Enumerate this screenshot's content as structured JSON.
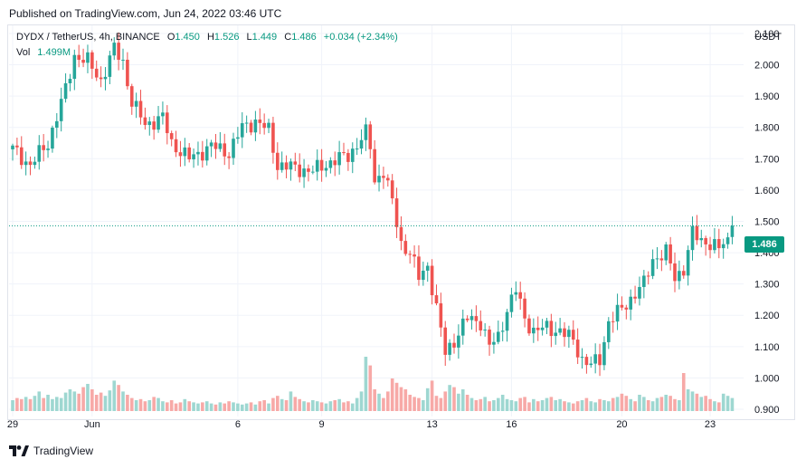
{
  "header": {
    "published": "Published on TradingView.com, Jun 24, 2022 03:46 UTC"
  },
  "legend": {
    "symbol": "DYDX / TetherUS, 4h, BINANCE",
    "open_label": "O",
    "open": "1.450",
    "high_label": "H",
    "high": "1.526",
    "low_label": "L",
    "low": "1.449",
    "close_label": "C",
    "close": "1.486",
    "change": "+0.034 (+2.34%)",
    "volume_label": "Vol",
    "volume": "1.499M"
  },
  "price_axis": {
    "currency": "USDT"
  },
  "last_price_label": "1.486",
  "footer": {
    "brand": "TradingView"
  },
  "colors": {
    "up": "#26a69a",
    "down": "#ef5350",
    "vol_up": "#9ed7d1",
    "vol_down": "#f7a9a7",
    "tag": "#089981",
    "grid": "#f0f3fa"
  },
  "chart_data": {
    "type": "candlestick",
    "ylim": [
      0.9,
      2.16
    ],
    "y_ticks": [
      "2.100",
      "2.000",
      "1.900",
      "1.800",
      "1.700",
      "1.600",
      "1.500",
      "1.400",
      "1.300",
      "1.200",
      "1.100",
      "1.000",
      "0.900"
    ],
    "x_ticks": [
      "29",
      "Jun",
      "6",
      "9",
      "13",
      "16",
      "20",
      "23"
    ],
    "last_price": 1.486,
    "waypoints": [
      {
        "i": 0,
        "p": 1.73
      },
      {
        "i": 4,
        "p": 1.68
      },
      {
        "i": 8,
        "p": 1.75
      },
      {
        "i": 12,
        "p": 1.92
      },
      {
        "i": 14,
        "p": 2.03
      },
      {
        "i": 17,
        "p": 2.01
      },
      {
        "i": 20,
        "p": 1.95
      },
      {
        "i": 23,
        "p": 2.05
      },
      {
        "i": 25,
        "p": 2.01
      },
      {
        "i": 27,
        "p": 1.88
      },
      {
        "i": 30,
        "p": 1.81
      },
      {
        "i": 34,
        "p": 1.83
      },
      {
        "i": 36,
        "p": 1.75
      },
      {
        "i": 40,
        "p": 1.7
      },
      {
        "i": 45,
        "p": 1.74
      },
      {
        "i": 49,
        "p": 1.72
      },
      {
        "i": 52,
        "p": 1.8
      },
      {
        "i": 55,
        "p": 1.82
      },
      {
        "i": 58,
        "p": 1.79
      },
      {
        "i": 60,
        "p": 1.68
      },
      {
        "i": 64,
        "p": 1.67
      },
      {
        "i": 68,
        "p": 1.66
      },
      {
        "i": 72,
        "p": 1.69
      },
      {
        "i": 76,
        "p": 1.71
      },
      {
        "i": 80,
        "p": 1.78
      },
      {
        "i": 81,
        "p": 1.74
      },
      {
        "i": 82,
        "p": 1.63
      },
      {
        "i": 84,
        "p": 1.66
      },
      {
        "i": 86,
        "p": 1.56
      },
      {
        "i": 88,
        "p": 1.43
      },
      {
        "i": 90,
        "p": 1.4
      },
      {
        "i": 92,
        "p": 1.32
      },
      {
        "i": 94,
        "p": 1.36
      },
      {
        "i": 96,
        "p": 1.22
      },
      {
        "i": 98,
        "p": 1.08
      },
      {
        "i": 100,
        "p": 1.12
      },
      {
        "i": 103,
        "p": 1.19
      },
      {
        "i": 106,
        "p": 1.18
      },
      {
        "i": 108,
        "p": 1.1
      },
      {
        "i": 110,
        "p": 1.13
      },
      {
        "i": 112,
        "p": 1.22
      },
      {
        "i": 114,
        "p": 1.28
      },
      {
        "i": 116,
        "p": 1.19
      },
      {
        "i": 118,
        "p": 1.15
      },
      {
        "i": 121,
        "p": 1.16
      },
      {
        "i": 124,
        "p": 1.15
      },
      {
        "i": 127,
        "p": 1.12
      },
      {
        "i": 129,
        "p": 1.06
      },
      {
        "i": 131,
        "p": 1.04
      },
      {
        "i": 133,
        "p": 1.06
      },
      {
        "i": 135,
        "p": 1.18
      },
      {
        "i": 138,
        "p": 1.22
      },
      {
        "i": 141,
        "p": 1.27
      },
      {
        "i": 143,
        "p": 1.3
      },
      {
        "i": 145,
        "p": 1.38
      },
      {
        "i": 148,
        "p": 1.4
      },
      {
        "i": 150,
        "p": 1.32
      },
      {
        "i": 152,
        "p": 1.35
      },
      {
        "i": 154,
        "p": 1.46
      },
      {
        "i": 156,
        "p": 1.44
      },
      {
        "i": 158,
        "p": 1.43
      },
      {
        "i": 160,
        "p": 1.41
      },
      {
        "i": 162,
        "p": 1.449
      },
      {
        "i": 163,
        "p": 1.486
      }
    ],
    "volume_ylim": [
      0,
      1.0
    ],
    "volume_values": [
      0.1,
      0.12,
      0.11,
      0.13,
      0.11,
      0.14,
      0.18,
      0.12,
      0.15,
      0.11,
      0.13,
      0.12,
      0.17,
      0.2,
      0.18,
      0.16,
      0.22,
      0.25,
      0.2,
      0.15,
      0.17,
      0.14,
      0.19,
      0.28,
      0.24,
      0.18,
      0.15,
      0.12,
      0.1,
      0.11,
      0.09,
      0.1,
      0.13,
      0.12,
      0.09,
      0.08,
      0.1,
      0.07,
      0.08,
      0.11,
      0.09,
      0.08,
      0.07,
      0.08,
      0.09,
      0.07,
      0.06,
      0.08,
      0.07,
      0.09,
      0.08,
      0.07,
      0.06,
      0.07,
      0.08,
      0.06,
      0.09,
      0.1,
      0.07,
      0.12,
      0.14,
      0.11,
      0.1,
      0.18,
      0.13,
      0.11,
      0.09,
      0.08,
      0.1,
      0.09,
      0.08,
      0.07,
      0.09,
      0.1,
      0.11,
      0.08,
      0.09,
      0.07,
      0.12,
      0.18,
      0.5,
      0.42,
      0.2,
      0.16,
      0.12,
      0.18,
      0.3,
      0.26,
      0.22,
      0.2,
      0.15,
      0.13,
      0.12,
      0.1,
      0.21,
      0.28,
      0.14,
      0.12,
      0.18,
      0.24,
      0.22,
      0.16,
      0.2,
      0.15,
      0.12,
      0.1,
      0.11,
      0.13,
      0.09,
      0.1,
      0.12,
      0.15,
      0.11,
      0.1,
      0.09,
      0.12,
      0.13,
      0.08,
      0.11,
      0.09,
      0.1,
      0.12,
      0.13,
      0.1,
      0.11,
      0.09,
      0.08,
      0.07,
      0.09,
      0.1,
      0.12,
      0.09,
      0.08,
      0.11,
      0.1,
      0.09,
      0.12,
      0.13,
      0.16,
      0.14,
      0.11,
      0.09,
      0.15,
      0.13,
      0.1,
      0.09,
      0.12,
      0.13,
      0.15,
      0.14,
      0.11,
      0.1,
      0.35,
      0.2,
      0.18,
      0.16,
      0.13,
      0.14,
      0.11,
      0.09,
      0.08,
      0.16,
      0.14,
      0.12
    ]
  }
}
